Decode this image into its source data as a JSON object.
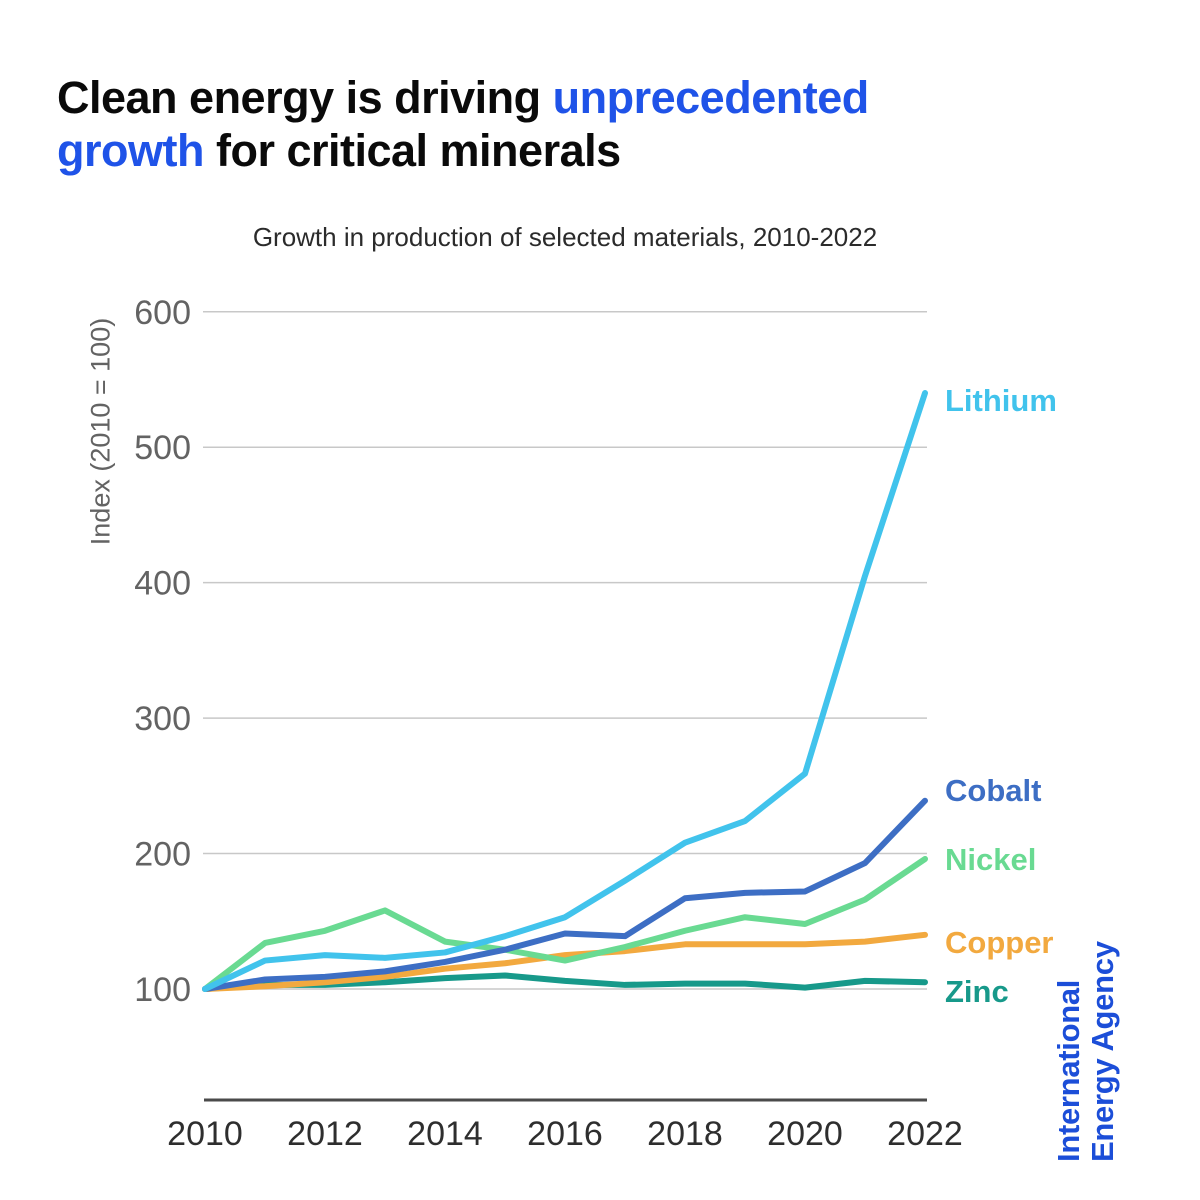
{
  "header": {
    "accent_color": "#1f53e8",
    "title_lines": [
      [
        {
          "text": "Clean energy is driving ",
          "accent": false
        },
        {
          "text": "unprecedented",
          "accent": true
        }
      ],
      [
        {
          "text": "growth",
          "accent": true
        },
        {
          "text": " for critical minerals",
          "accent": false
        }
      ]
    ]
  },
  "chart_data": {
    "type": "line",
    "title": "Growth in production of selected materials, 2010-2022",
    "xlabel": "",
    "ylabel": "Index (2010 = 100)",
    "x": [
      2010,
      2011,
      2012,
      2013,
      2014,
      2015,
      2016,
      2017,
      2018,
      2019,
      2020,
      2021,
      2022
    ],
    "x_ticks": [
      2010,
      2012,
      2014,
      2016,
      2018,
      2020,
      2022
    ],
    "y_ticks": [
      100,
      200,
      300,
      400,
      500,
      600
    ],
    "ylim": [
      20,
      620
    ],
    "grid": true,
    "legend_position": "right-end-of-lines",
    "series": [
      {
        "name": "Lithium",
        "color": "#41c3ec",
        "values": [
          100,
          121,
          125,
          123,
          127,
          139,
          153,
          180,
          208,
          224,
          259,
          405,
          540
        ]
      },
      {
        "name": "Cobalt",
        "color": "#3d6ec4",
        "values": [
          100,
          107,
          109,
          113,
          120,
          129,
          141,
          139,
          167,
          171,
          172,
          193,
          239
        ]
      },
      {
        "name": "Nickel",
        "color": "#69da92",
        "values": [
          100,
          134,
          143,
          158,
          135,
          129,
          121,
          131,
          143,
          153,
          148,
          166,
          196
        ]
      },
      {
        "name": "Copper",
        "color": "#f2a93f",
        "values": [
          100,
          102,
          105,
          109,
          115,
          119,
          125,
          128,
          133,
          133,
          133,
          135,
          140
        ]
      },
      {
        "name": "Zinc",
        "color": "#17998a",
        "values": [
          100,
          103,
          103,
          105,
          108,
          110,
          106,
          103,
          104,
          104,
          101,
          106,
          105
        ]
      }
    ],
    "style": {
      "gridline_color": "#c8c8c8",
      "axis_line_color": "#4a4a4a",
      "y_tick_color": "#636363",
      "x_tick_color": "#2e2e2e"
    }
  },
  "branding": {
    "line1": "International",
    "line2": "Energy Agency",
    "color": "#1c4ed8"
  }
}
